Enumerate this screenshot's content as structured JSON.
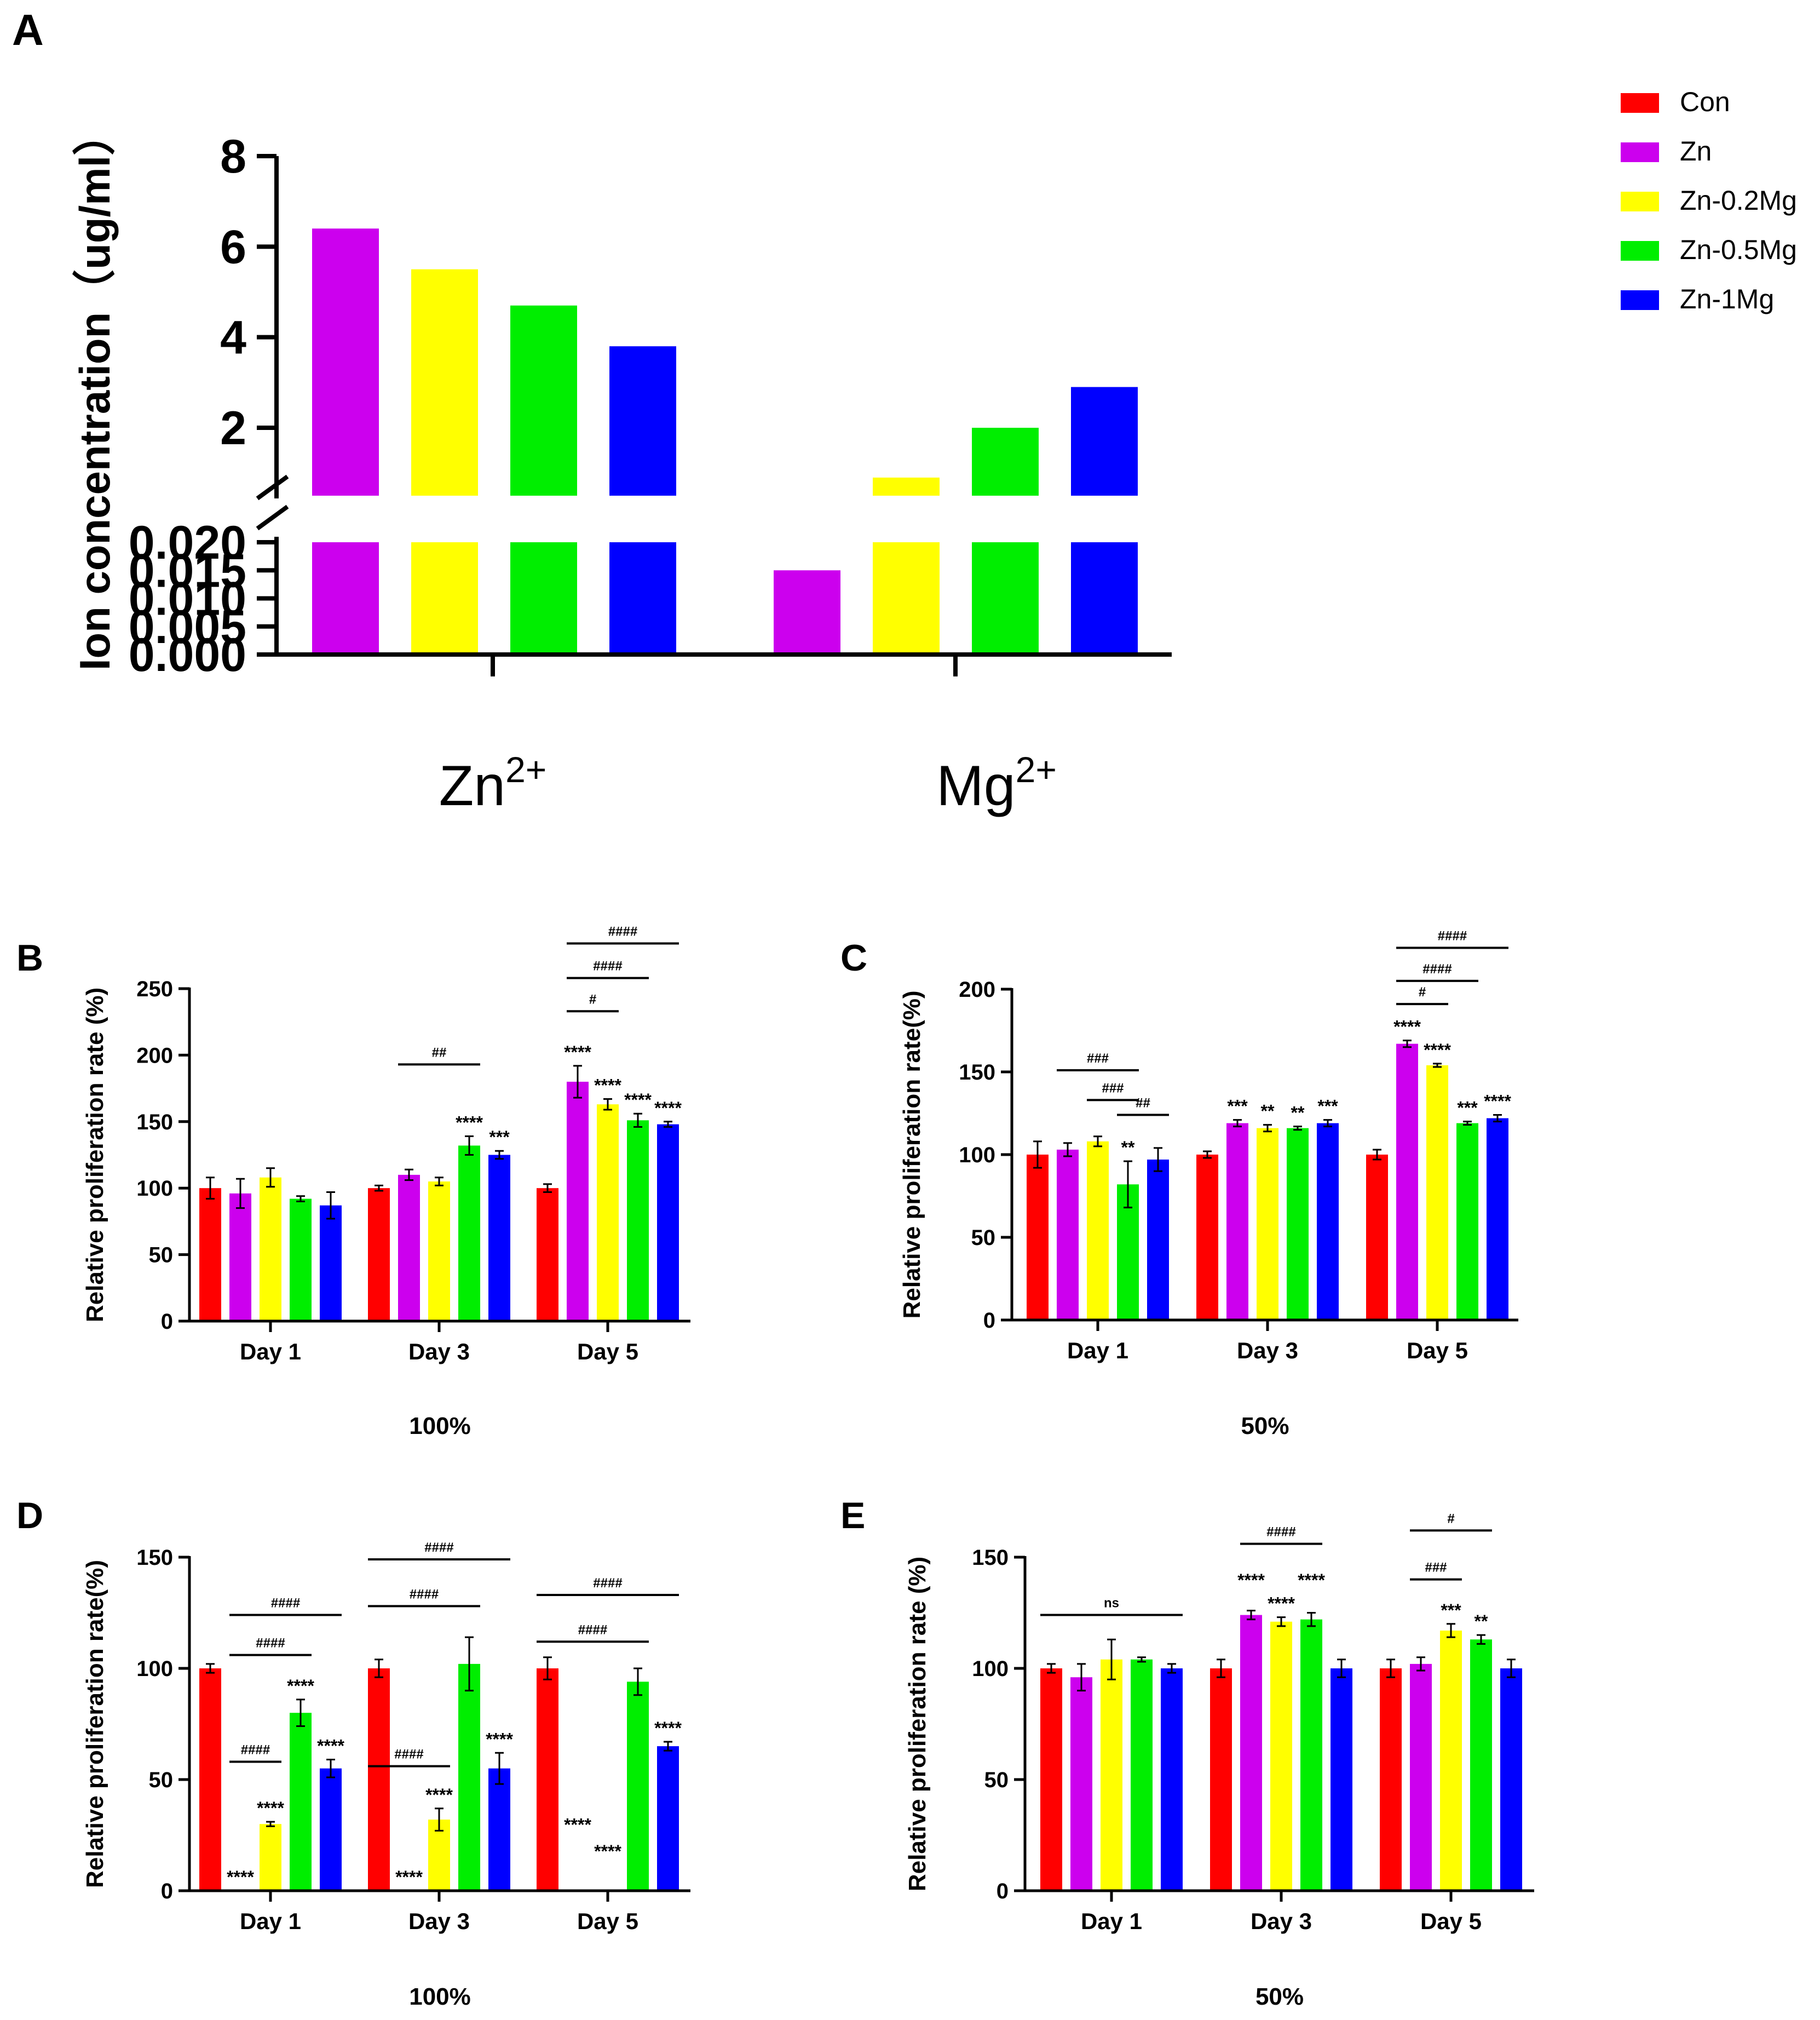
{
  "colors": {
    "Con": "#ff0000",
    "Zn": "#cc00ee",
    "Zn-0.2Mg": "#ffff00",
    "Zn-0.5Mg": "#00ee00",
    "Zn-1Mg": "#0000ff"
  },
  "legend": {
    "placement": "top-right",
    "items": [
      {
        "key": "Con",
        "label": "Con"
      },
      {
        "key": "Zn",
        "label": "Zn"
      },
      {
        "key": "Zn-0.2Mg",
        "label": "Zn-0.2Mg"
      },
      {
        "key": "Zn-0.5Mg",
        "label": "Zn-0.5Mg"
      },
      {
        "key": "Zn-1Mg",
        "label": "Zn-1Mg"
      }
    ]
  },
  "chart_data": [
    {
      "panel": "A",
      "type": "bar",
      "ylabel": "Ion concentration（ug/ml）",
      "categories": [
        "Zn2+",
        "Mg2+"
      ],
      "category_labels": [
        {
          "base": "Zn",
          "sup": "2+"
        },
        {
          "base": "Mg",
          "sup": "2+"
        }
      ],
      "axis_break": true,
      "ylim_lower": [
        0,
        0.02
      ],
      "ylim_upper": [
        0.5,
        8
      ],
      "yticks_lower": [
        "0.000",
        "0.005",
        "0.010",
        "0.015",
        "0.020"
      ],
      "yticks_upper": [
        "2",
        "4",
        "6",
        "8"
      ],
      "groups": [
        {
          "category": "Zn2+",
          "bars": [
            {
              "series": "Zn",
              "value": 6.4
            },
            {
              "series": "Zn-0.2Mg",
              "value": 5.5
            },
            {
              "series": "Zn-0.5Mg",
              "value": 4.7
            },
            {
              "series": "Zn-1Mg",
              "value": 3.8
            }
          ]
        },
        {
          "category": "Mg2+",
          "bars": [
            {
              "series": "Zn",
              "value": 0.015
            },
            {
              "series": "Zn-0.2Mg",
              "value": 0.9
            },
            {
              "series": "Zn-0.5Mg",
              "value": 2.0
            },
            {
              "series": "Zn-1Mg",
              "value": 2.9
            }
          ]
        }
      ]
    },
    {
      "panel": "B",
      "type": "bar",
      "ylabel": "Relative proliferation rate (%)",
      "caption": "100%",
      "categories": [
        "Day 1",
        "Day 3",
        "Day 5"
      ],
      "ylim": [
        0,
        250
      ],
      "yticks": [
        "0",
        "50",
        "100",
        "150",
        "200",
        "250"
      ],
      "series": [
        {
          "key": "Con",
          "values": [
            100,
            100,
            100
          ],
          "errors": [
            8,
            2,
            3
          ]
        },
        {
          "key": "Zn",
          "values": [
            96,
            110,
            180
          ],
          "errors": [
            11,
            4,
            12
          ]
        },
        {
          "key": "Zn-0.2Mg",
          "values": [
            108,
            105,
            163
          ],
          "errors": [
            7,
            3,
            4
          ]
        },
        {
          "key": "Zn-0.5Mg",
          "values": [
            92,
            132,
            151
          ],
          "errors": [
            2,
            7,
            5
          ]
        },
        {
          "key": "Zn-1Mg",
          "values": [
            87,
            125,
            148
          ],
          "errors": [
            10,
            3,
            2
          ]
        }
      ],
      "stars": [
        {
          "cat": 1,
          "series": "Zn-0.5Mg",
          "text": "****"
        },
        {
          "cat": 1,
          "series": "Zn-1Mg",
          "text": "***"
        },
        {
          "cat": 2,
          "series": "Zn",
          "text": "****"
        },
        {
          "cat": 2,
          "series": "Zn-0.2Mg",
          "text": "****"
        },
        {
          "cat": 2,
          "series": "Zn-0.5Mg",
          "text": "****"
        },
        {
          "cat": 2,
          "series": "Zn-1Mg",
          "text": "****"
        }
      ],
      "brackets": [
        {
          "cat": 1,
          "from": "Zn",
          "to": "Zn-0.5Mg",
          "y": 193,
          "text": "##"
        },
        {
          "cat": 2,
          "from": "Zn",
          "to": "Zn-0.2Mg",
          "y": 233,
          "text": "#"
        },
        {
          "cat": 2,
          "from": "Zn",
          "to": "Zn-0.5Mg",
          "y": 258,
          "text": "####"
        },
        {
          "cat": 2,
          "from": "Zn",
          "to": "Zn-1Mg",
          "y": 284,
          "text": "####"
        }
      ]
    },
    {
      "panel": "C",
      "type": "bar",
      "ylabel": "Relative proliferation rate(%)",
      "caption": "50%",
      "categories": [
        "Day 1",
        "Day 3",
        "Day 5"
      ],
      "ylim": [
        0,
        200
      ],
      "yticks": [
        "0",
        "50",
        "100",
        "150",
        "200"
      ],
      "series": [
        {
          "key": "Con",
          "values": [
            100,
            100,
            100
          ],
          "errors": [
            8,
            2,
            3
          ]
        },
        {
          "key": "Zn",
          "values": [
            103,
            119,
            167
          ],
          "errors": [
            4,
            2,
            2
          ]
        },
        {
          "key": "Zn-0.2Mg",
          "values": [
            108,
            116,
            154
          ],
          "errors": [
            3,
            2,
            1
          ]
        },
        {
          "key": "Zn-0.5Mg",
          "values": [
            82,
            116,
            119
          ],
          "errors": [
            14,
            1,
            1
          ]
        },
        {
          "key": "Zn-1Mg",
          "values": [
            97,
            119,
            122
          ],
          "errors": [
            7,
            2,
            2
          ]
        }
      ],
      "stars": [
        {
          "cat": 0,
          "series": "Zn-0.5Mg",
          "text": "**"
        },
        {
          "cat": 1,
          "series": "Zn",
          "text": "***"
        },
        {
          "cat": 1,
          "series": "Zn-0.2Mg",
          "text": "**"
        },
        {
          "cat": 1,
          "series": "Zn-0.5Mg",
          "text": "**"
        },
        {
          "cat": 1,
          "series": "Zn-1Mg",
          "text": "***"
        },
        {
          "cat": 2,
          "series": "Zn",
          "text": "****"
        },
        {
          "cat": 2,
          "series": "Zn-0.2Mg",
          "text": "****"
        },
        {
          "cat": 2,
          "series": "Zn-0.5Mg",
          "text": "***"
        },
        {
          "cat": 2,
          "series": "Zn-1Mg",
          "text": "****"
        }
      ],
      "brackets": [
        {
          "cat": 0,
          "from": "Zn-0.5Mg",
          "to": "Zn-1Mg",
          "y": 124,
          "text": "##"
        },
        {
          "cat": 0,
          "from": "Zn-0.2Mg",
          "to": "Zn-0.5Mg",
          "y": 133,
          "text": "###"
        },
        {
          "cat": 0,
          "from": "Zn",
          "to": "Zn-0.5Mg",
          "y": 151,
          "text": "###"
        },
        {
          "cat": 2,
          "from": "Zn",
          "to": "Zn-0.2Mg",
          "y": 191,
          "text": "#"
        },
        {
          "cat": 2,
          "from": "Zn",
          "to": "Zn-0.5Mg",
          "y": 205,
          "text": "####"
        },
        {
          "cat": 2,
          "from": "Zn",
          "to": "Zn-1Mg",
          "y": 225,
          "text": "####"
        }
      ]
    },
    {
      "panel": "D",
      "type": "bar",
      "ylabel": "Relative proliferation rate(%)",
      "caption": "100%",
      "categories": [
        "Day 1",
        "Day 3",
        "Day 5"
      ],
      "ylim": [
        0,
        150
      ],
      "yticks": [
        "0",
        "50",
        "100",
        "150"
      ],
      "series": [
        {
          "key": "Con",
          "values": [
            100,
            100,
            100
          ],
          "errors": [
            2,
            4,
            5
          ]
        },
        {
          "key": "Zn",
          "values": [
            0,
            0,
            0
          ],
          "errors": [
            0,
            0,
            0
          ]
        },
        {
          "key": "Zn-0.2Mg",
          "values": [
            30,
            32,
            0
          ],
          "errors": [
            1,
            5,
            0
          ]
        },
        {
          "key": "Zn-0.5Mg",
          "values": [
            80,
            102,
            94
          ],
          "errors": [
            6,
            12,
            6
          ]
        },
        {
          "key": "Zn-1Mg",
          "values": [
            55,
            55,
            65
          ],
          "errors": [
            4,
            7,
            2
          ]
        }
      ],
      "stars": [
        {
          "cat": 0,
          "series": "Zn",
          "text": "****"
        },
        {
          "cat": 0,
          "series": "Zn-0.2Mg",
          "text": "****"
        },
        {
          "cat": 0,
          "series": "Zn-0.5Mg",
          "text": "****"
        },
        {
          "cat": 0,
          "series": "Zn-1Mg",
          "text": "****"
        },
        {
          "cat": 1,
          "series": "Zn",
          "text": "****"
        },
        {
          "cat": 1,
          "series": "Zn-0.2Mg",
          "text": "****"
        },
        {
          "cat": 1,
          "series": "Zn-1Mg",
          "text": "****"
        },
        {
          "cat": 2,
          "series": "Zn",
          "text": "****",
          "y": 27
        },
        {
          "cat": 2,
          "series": "Zn-0.2Mg",
          "text": "****",
          "y": 15
        },
        {
          "cat": 2,
          "series": "Zn-1Mg",
          "text": "****"
        }
      ],
      "brackets": [
        {
          "cat": 0,
          "from": "Zn",
          "to": "Zn-0.2Mg",
          "y": 58,
          "text": "####"
        },
        {
          "cat": 0,
          "from": "Zn",
          "to": "Zn-0.5Mg",
          "y": 106,
          "text": "####"
        },
        {
          "cat": 0,
          "from": "Zn",
          "to": "Zn-1Mg",
          "y": 124,
          "text": "####"
        },
        {
          "cat": 1,
          "from": "Con",
          "to": "Zn-0.2Mg",
          "y": 56,
          "text": "####"
        },
        {
          "cat": 1,
          "from": "Con",
          "to": "Zn-0.5Mg",
          "y": 128,
          "text": "####"
        },
        {
          "cat": 1,
          "from": "Con",
          "to": "Zn-1Mg",
          "y": 149,
          "text": "####"
        },
        {
          "cat": 2,
          "from": "Con",
          "to": "Zn-0.5Mg",
          "y": 112,
          "text": "####"
        },
        {
          "cat": 2,
          "from": "Con",
          "to": "Zn-1Mg",
          "y": 133,
          "text": "####"
        }
      ]
    },
    {
      "panel": "E",
      "type": "bar",
      "ylabel": "Relative proliferation rate (%)",
      "caption": "50%",
      "categories": [
        "Day 1",
        "Day 3",
        "Day 5"
      ],
      "ylim": [
        0,
        150
      ],
      "yticks": [
        "0",
        "50",
        "100",
        "150"
      ],
      "series": [
        {
          "key": "Con",
          "values": [
            100,
            100,
            100
          ],
          "errors": [
            2,
            4,
            4
          ]
        },
        {
          "key": "Zn",
          "values": [
            96,
            124,
            102
          ],
          "errors": [
            6,
            2,
            3
          ]
        },
        {
          "key": "Zn-0.2Mg",
          "values": [
            104,
            121,
            117
          ],
          "errors": [
            9,
            2,
            3
          ]
        },
        {
          "key": "Zn-0.5Mg",
          "values": [
            104,
            122,
            113
          ],
          "errors": [
            1,
            3,
            2
          ]
        },
        {
          "key": "Zn-1Mg",
          "values": [
            100,
            100,
            100
          ],
          "errors": [
            2,
            4,
            4
          ]
        }
      ],
      "stars": [
        {
          "cat": 1,
          "series": "Zn",
          "text": "****",
          "y": 137
        },
        {
          "cat": 1,
          "series": "Zn-0.2Mg",
          "text": "****"
        },
        {
          "cat": 1,
          "series": "Zn-0.5Mg",
          "text": "****",
          "y": 137
        },
        {
          "cat": 2,
          "series": "Zn-0.2Mg",
          "text": "***"
        },
        {
          "cat": 2,
          "series": "Zn-0.5Mg",
          "text": "**"
        }
      ],
      "brackets": [
        {
          "cat": 0,
          "from": "Con",
          "to": "Zn-1Mg",
          "y": 124,
          "text": "ns"
        },
        {
          "cat": 1,
          "from": "Zn",
          "to": "Zn-0.5Mg",
          "y": 156,
          "text": "####"
        },
        {
          "cat": 2,
          "from": "Zn",
          "to": "Zn-0.2Mg",
          "y": 140,
          "text": "###"
        },
        {
          "cat": 2,
          "from": "Zn",
          "to": "Zn-0.5Mg",
          "y": 162,
          "text": "#"
        }
      ]
    }
  ]
}
